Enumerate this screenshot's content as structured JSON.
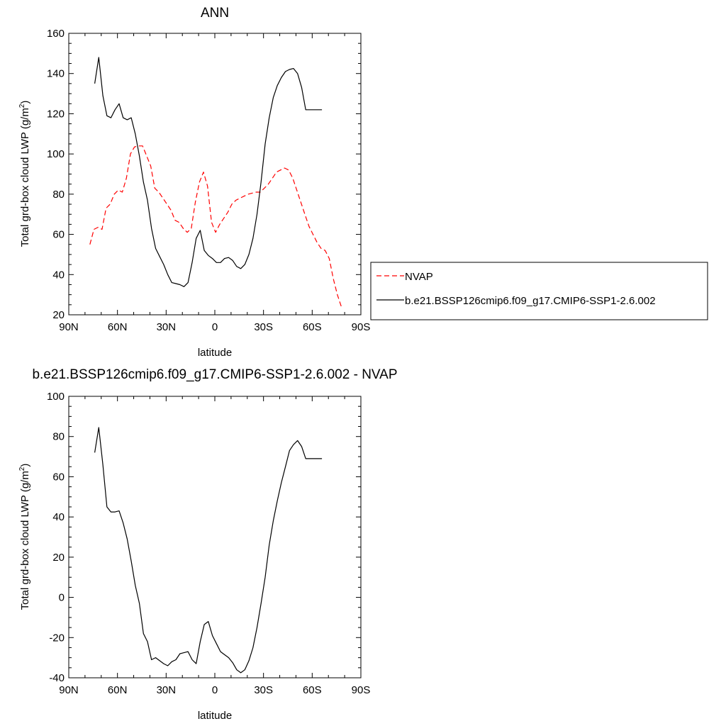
{
  "chart_data": [
    {
      "type": "line",
      "title": "ANN",
      "xlabel": "latitude",
      "ylabel": "Total grd-box cloud LWP (g/m",
      "ylabel_sup": "2",
      "ylabel_end": ")",
      "x_ticks": [
        {
          "value": -90,
          "label": "90N"
        },
        {
          "value": -60,
          "label": "60N"
        },
        {
          "value": -30,
          "label": "30N"
        },
        {
          "value": 0,
          "label": "0"
        },
        {
          "value": 30,
          "label": "30S"
        },
        {
          "value": 60,
          "label": "60S"
        },
        {
          "value": 90,
          "label": "90S"
        }
      ],
      "xlim": [
        -90,
        90
      ],
      "ylim": [
        20,
        160
      ],
      "y_ticks": [
        20,
        40,
        60,
        80,
        100,
        120,
        140,
        160
      ],
      "grid": false,
      "legend_position": "right",
      "series": [
        {
          "name": "NVAP",
          "color": "#ff0000",
          "dash": "dashed",
          "x": [
            -77,
            -74.5,
            -72,
            -69.5,
            -67,
            -64.5,
            -62,
            -59.5,
            -57,
            -54.5,
            -52,
            -49.5,
            -47,
            -44.5,
            -42,
            -39.5,
            -37,
            -34.5,
            -32,
            -29.5,
            -27,
            -24.5,
            -22,
            -19.5,
            -17,
            -14.5,
            -12,
            -9.5,
            -7,
            -4.5,
            -2,
            0.5,
            3,
            5.5,
            8,
            10.5,
            13,
            15.5,
            18,
            20.5,
            23,
            25.5,
            28,
            30.5,
            33,
            35.5,
            38,
            40.5,
            43,
            45.5,
            48,
            50.5,
            53,
            55.5,
            58,
            60.5,
            63,
            65.5,
            68,
            70.5,
            73,
            75.5,
            78
          ],
          "y": [
            55,
            62.5,
            63.5,
            62.5,
            73,
            75,
            80,
            82,
            81,
            88,
            100,
            103.5,
            104,
            104,
            99,
            94,
            83,
            81,
            78,
            75,
            72,
            67,
            66,
            63,
            61,
            63,
            76,
            86,
            91,
            84,
            66,
            61,
            65,
            68,
            71,
            75,
            77,
            78,
            79,
            80,
            80.5,
            81,
            81,
            83,
            85,
            88,
            91,
            92,
            93,
            92,
            88,
            82,
            76,
            70,
            64,
            60,
            56,
            53,
            52,
            48,
            38,
            30,
            24
          ]
        },
        {
          "name": "b.e21.BSSP126cmip6.f09_g17.CMIP6-SSP1-2.6.002",
          "color": "#000000",
          "dash": "solid",
          "x": [
            -74,
            -71.5,
            -69,
            -66.5,
            -64,
            -61.5,
            -59,
            -56.5,
            -54,
            -51.5,
            -49,
            -46.5,
            -44,
            -41.5,
            -39,
            -36.5,
            -34,
            -31.5,
            -29,
            -26.5,
            -24,
            -21.5,
            -19,
            -16.5,
            -14,
            -11.5,
            -9,
            -6.5,
            -4,
            -1.5,
            1,
            3.5,
            6,
            8.5,
            11,
            13.5,
            16,
            18.5,
            21,
            23.5,
            26,
            28.5,
            31,
            33.5,
            36,
            38.5,
            41,
            43.5,
            46,
            48.5,
            51,
            53.5,
            56,
            58.5,
            61,
            63.5,
            66
          ],
          "y": [
            135,
            148,
            129,
            119,
            118,
            122,
            125,
            118,
            117,
            118,
            110,
            99,
            86,
            77,
            63,
            53,
            49,
            45,
            40,
            36,
            35.5,
            35,
            34,
            36,
            46,
            58,
            62,
            52,
            49.5,
            48,
            46,
            46,
            48,
            48.5,
            47,
            44,
            43,
            45,
            50,
            58,
            70,
            86,
            105,
            118,
            128,
            134,
            138,
            141,
            142,
            142.5,
            140,
            133,
            122,
            122,
            122,
            122,
            122
          ]
        }
      ]
    },
    {
      "type": "line",
      "title": "b.e21.BSSP126cmip6.f09_g17.CMIP6-SSP1-2.6.002 - NVAP",
      "xlabel": "latitude",
      "ylabel": "Total grd-box cloud LWP (g/m",
      "ylabel_sup": "2",
      "ylabel_end": ")",
      "x_ticks": [
        {
          "value": -90,
          "label": "90N"
        },
        {
          "value": -60,
          "label": "60N"
        },
        {
          "value": -30,
          "label": "30N"
        },
        {
          "value": 0,
          "label": "0"
        },
        {
          "value": 30,
          "label": "30S"
        },
        {
          "value": 60,
          "label": "60S"
        },
        {
          "value": 90,
          "label": "90S"
        }
      ],
      "xlim": [
        -90,
        90
      ],
      "ylim": [
        -40,
        100
      ],
      "y_ticks": [
        -40,
        -20,
        0,
        20,
        40,
        60,
        80,
        100
      ],
      "grid": false,
      "series": [
        {
          "color": "#000000",
          "dash": "solid",
          "x": [
            -74,
            -71.5,
            -69,
            -66.5,
            -64,
            -61.5,
            -59,
            -56.5,
            -54,
            -51.5,
            -49,
            -46.5,
            -44,
            -41.5,
            -39,
            -36.5,
            -34,
            -31.5,
            -29,
            -26.5,
            -24,
            -21.5,
            -19,
            -16.5,
            -14,
            -11.5,
            -9,
            -6.5,
            -4,
            -1.5,
            1,
            3.5,
            6,
            8.5,
            11,
            13.5,
            16,
            18.5,
            21,
            23.5,
            26,
            28.5,
            31,
            33.5,
            36,
            38.5,
            41,
            43.5,
            46,
            48.5,
            51,
            53.5,
            56,
            58.5,
            61,
            63.5,
            66
          ],
          "y": [
            72,
            84.5,
            66,
            45,
            42.5,
            42.5,
            43,
            37,
            29,
            18,
            6,
            -3,
            -18,
            -22,
            -31,
            -30,
            -31.5,
            -33,
            -34,
            -32,
            -31,
            -28,
            -27.5,
            -27,
            -31,
            -33,
            -22,
            -13.5,
            -12,
            -19,
            -23,
            -27,
            -28.5,
            -30,
            -32.5,
            -36,
            -37.5,
            -36,
            -31.5,
            -25,
            -15,
            -3,
            10,
            26,
            38,
            48,
            57,
            65,
            73,
            76,
            78,
            75,
            69,
            69,
            69,
            69,
            69
          ]
        }
      ]
    }
  ]
}
